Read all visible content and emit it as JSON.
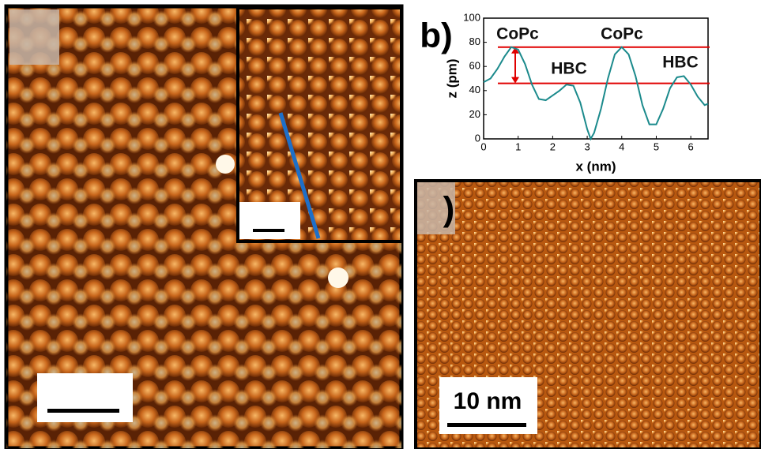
{
  "labels": {
    "panel_b": "b)",
    "panel_c": ")",
    "scale_bar": "10 nm"
  },
  "chart_data": {
    "type": "line",
    "xlabel": "x (nm)",
    "ylabel": "z (pm)",
    "x": [
      0,
      0.2,
      0.4,
      0.6,
      0.8,
      1.0,
      1.2,
      1.4,
      1.6,
      1.8,
      2.0,
      2.2,
      2.4,
      2.6,
      2.8,
      3.0,
      3.1,
      3.2,
      3.4,
      3.6,
      3.8,
      4.0,
      4.2,
      4.4,
      4.6,
      4.8,
      5.0,
      5.2,
      5.4,
      5.6,
      5.8,
      6.0,
      6.2,
      6.4,
      6.5
    ],
    "series": [
      {
        "color": "#1b8a8c",
        "values": [
          47,
          50,
          58,
          68,
          76,
          74,
          62,
          45,
          33,
          32,
          36,
          40,
          45,
          44,
          30,
          8,
          0,
          5,
          25,
          50,
          70,
          76,
          70,
          52,
          28,
          12,
          12,
          25,
          42,
          51,
          52,
          45,
          35,
          28,
          29
        ]
      }
    ],
    "xlim": [
      0,
      6.5
    ],
    "ylim": [
      0,
      100
    ],
    "xticks": [
      0,
      1,
      2,
      3,
      4,
      5,
      6
    ],
    "yticks": [
      0,
      20,
      40,
      60,
      80,
      100
    ],
    "reference_lines": [
      76,
      46
    ],
    "reference_color": "#e00000",
    "annotations": [
      "CoPc",
      "HBC",
      "CoPc",
      "HBC"
    ]
  }
}
